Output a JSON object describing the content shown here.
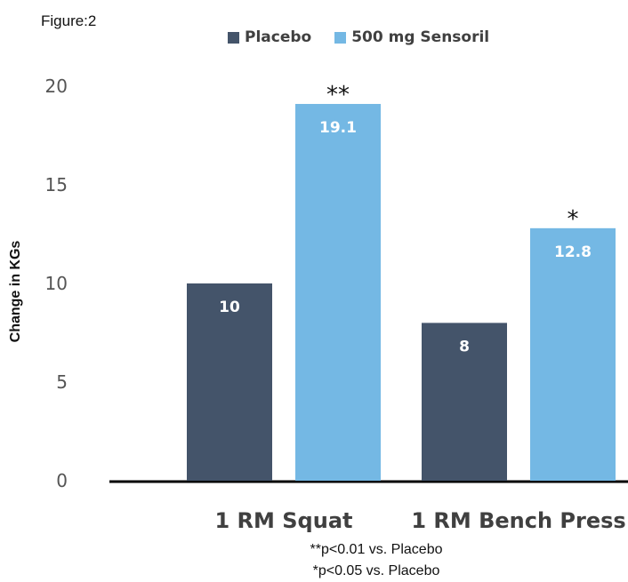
{
  "figure_label": "Figure:2",
  "chart_data": {
    "type": "bar",
    "categories": [
      "1 RM Squat",
      "1 RM Bench Press"
    ],
    "series": [
      {
        "name": "Placebo",
        "values": [
          10,
          8
        ],
        "color": "#44546a"
      },
      {
        "name": "500 mg Sensoril",
        "values": [
          19.1,
          12.8
        ],
        "color": "#74b8e4"
      }
    ],
    "data_labels": [
      [
        "10",
        "8"
      ],
      [
        "19.1",
        "12.8"
      ]
    ],
    "significance": [
      [
        "",
        ""
      ],
      [
        "**",
        "*"
      ]
    ],
    "ylabel": "Change in KGs",
    "xlabel": "",
    "ylim": [
      0,
      20
    ],
    "yticks": [
      0,
      5,
      10,
      15,
      20
    ],
    "grid": false,
    "legend_position": "top"
  },
  "footnotes": [
    "**p<0.01 vs. Placebo",
    "*p<0.05 vs. Placebo"
  ]
}
